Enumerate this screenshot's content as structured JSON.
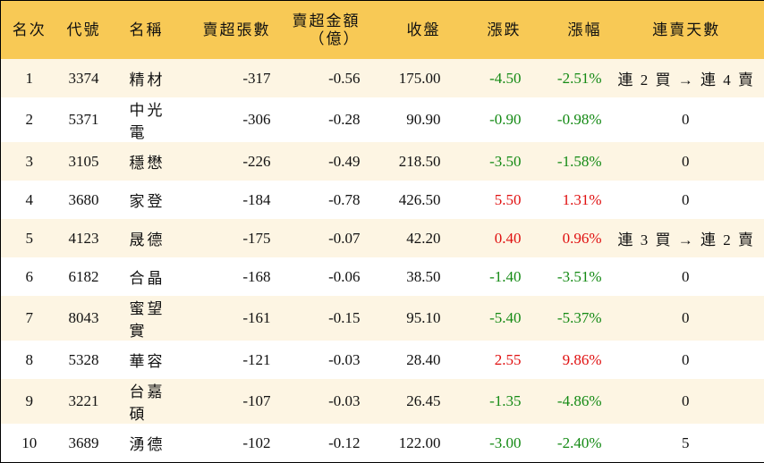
{
  "table": {
    "headers": [
      [
        "名次"
      ],
      [
        "代號"
      ],
      [
        "名稱"
      ],
      [
        "賣超張數"
      ],
      [
        "賣超金額",
        "（億）"
      ],
      [
        "收盤"
      ],
      [
        "漲跌"
      ],
      [
        "漲幅"
      ],
      [
        "連賣天數"
      ]
    ],
    "rows": [
      [
        "1",
        "3374",
        "精材",
        "-317",
        "-0.56",
        "175.00",
        "-4.50",
        "-2.51%",
        "連 2 買 → 連 4 賣"
      ],
      [
        "2",
        "5371",
        "中光電",
        "-306",
        "-0.28",
        "90.90",
        "-0.90",
        "-0.98%",
        "0"
      ],
      [
        "3",
        "3105",
        "穩懋",
        "-226",
        "-0.49",
        "218.50",
        "-3.50",
        "-1.58%",
        "0"
      ],
      [
        "4",
        "3680",
        "家登",
        "-184",
        "-0.78",
        "426.50",
        "5.50",
        "1.31%",
        "0"
      ],
      [
        "5",
        "4123",
        "晟德",
        "-175",
        "-0.07",
        "42.20",
        "0.40",
        "0.96%",
        "連 3 買 → 連 2 賣"
      ],
      [
        "6",
        "6182",
        "合晶",
        "-168",
        "-0.06",
        "38.50",
        "-1.40",
        "-3.51%",
        "0"
      ],
      [
        "7",
        "8043",
        "蜜望實",
        "-161",
        "-0.15",
        "95.10",
        "-5.40",
        "-5.37%",
        "0"
      ],
      [
        "8",
        "5328",
        "華容",
        "-121",
        "-0.03",
        "28.40",
        "2.55",
        "9.86%",
        "0"
      ],
      [
        "9",
        "3221",
        "台嘉碩",
        "-107",
        "-0.03",
        "26.45",
        "-1.35",
        "-4.86%",
        "0"
      ],
      [
        "10",
        "3689",
        "湧德",
        "-102",
        "-0.12",
        "122.00",
        "-3.00",
        "-2.40%",
        "5"
      ]
    ],
    "colors": {
      "up": "#e01010",
      "down": "#148a14"
    }
  }
}
